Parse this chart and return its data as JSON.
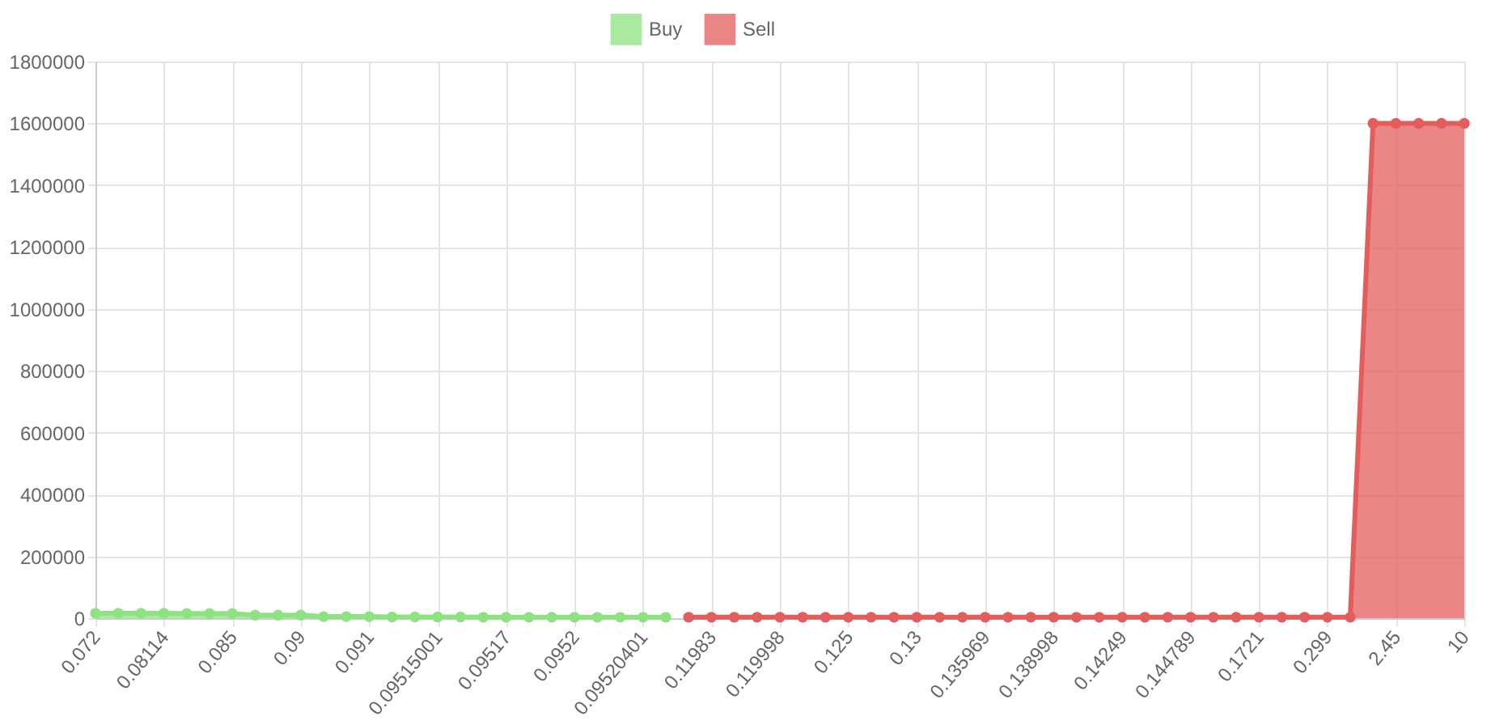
{
  "chart_data": {
    "type": "area",
    "categories": [
      "0.072",
      null,
      null,
      "0.08114",
      null,
      null,
      "0.085",
      null,
      null,
      "0.09",
      null,
      null,
      "0.091",
      null,
      null,
      "0.09515001",
      null,
      null,
      "0.09517",
      null,
      null,
      "0.0952",
      null,
      null,
      "0.09520401",
      null,
      null,
      "0.11983",
      null,
      null,
      "0.119998",
      null,
      null,
      "0.125",
      null,
      null,
      "0.13",
      null,
      null,
      "0.135969",
      null,
      null,
      "0.138998",
      null,
      null,
      "0.14249",
      null,
      null,
      "0.144789",
      null,
      null,
      "0.1721",
      null,
      null,
      "0.299",
      null,
      null,
      "2.45",
      null,
      null,
      "10"
    ],
    "series": [
      {
        "name": "Buy",
        "color": "#8ee381",
        "values": [
          16000,
          16000,
          16000,
          16000,
          15000,
          15000,
          15000,
          10000,
          10000,
          10000,
          5000,
          5000,
          5000,
          4000,
          4000,
          4000,
          4000,
          3000,
          3000,
          3000,
          3000,
          3000,
          3000,
          3000,
          3000,
          3000,
          null,
          null,
          null,
          null,
          null,
          null,
          null,
          null,
          null,
          null,
          null,
          null,
          null,
          null,
          null,
          null,
          null,
          null,
          null,
          null,
          null,
          null,
          null,
          null,
          null,
          null,
          null,
          null,
          null,
          null,
          null,
          null,
          null,
          null,
          null
        ]
      },
      {
        "name": "Sell",
        "color": "#e45d5d",
        "values": [
          null,
          null,
          null,
          null,
          null,
          null,
          null,
          null,
          null,
          null,
          null,
          null,
          null,
          null,
          null,
          null,
          null,
          null,
          null,
          null,
          null,
          null,
          null,
          null,
          null,
          null,
          3000,
          3000,
          3000,
          3000,
          3000,
          3000,
          3000,
          3000,
          3000,
          3000,
          3000,
          3000,
          3000,
          3000,
          3000,
          3000,
          3000,
          3000,
          3000,
          3000,
          3000,
          3000,
          3000,
          3000,
          3000,
          3000,
          3000,
          3000,
          3000,
          3000,
          1600000,
          1600000,
          1600000,
          1600000,
          1600000
        ]
      }
    ],
    "ylim": [
      0,
      1800000
    ],
    "yticks": [
      0,
      200000,
      400000,
      600000,
      800000,
      1000000,
      1200000,
      1400000,
      1600000,
      1800000
    ],
    "grid": true,
    "legend": "top",
    "marker": "circle",
    "line_style": "solid"
  }
}
